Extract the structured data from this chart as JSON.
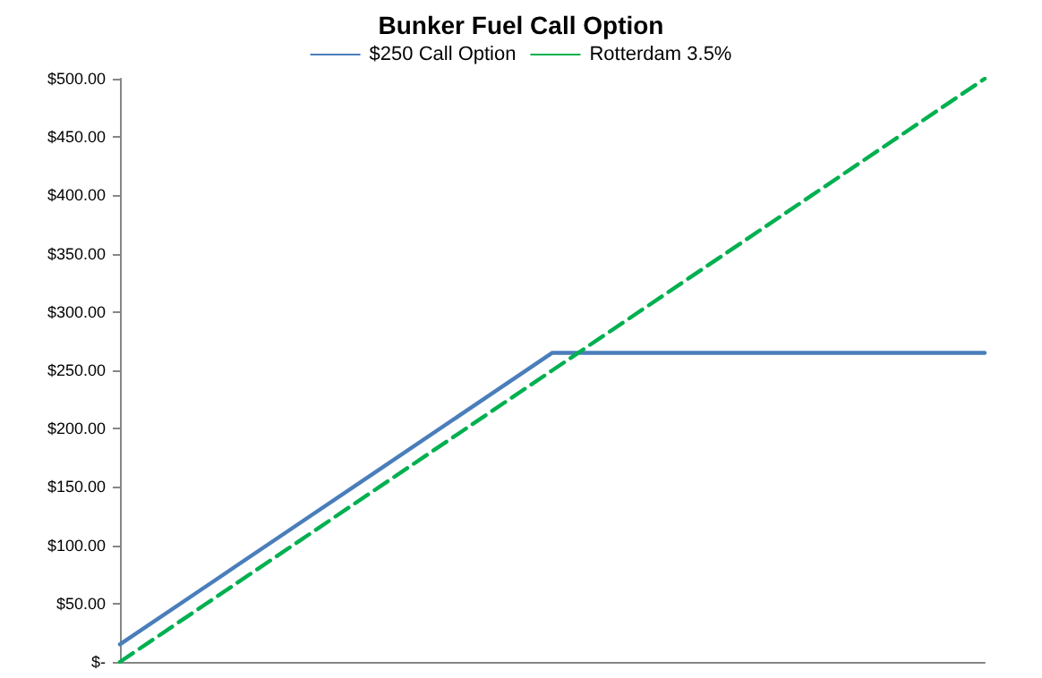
{
  "chart_data": {
    "type": "line",
    "title": "Bunker Fuel Call Option",
    "categories": [
      null,
      null,
      null,
      null,
      null,
      null,
      null,
      null,
      null,
      null,
      null
    ],
    "series": [
      {
        "name": "$250 Call Option",
        "color": "#4a7ebb",
        "values": [
          15,
          65,
          115,
          165,
          215,
          265,
          265,
          265,
          265,
          265,
          265
        ],
        "line_style": "solid"
      },
      {
        "name": "Rotterdam 3.5%",
        "color": "#00b050",
        "values": [
          0,
          50,
          100,
          150,
          200,
          250,
          300,
          350,
          400,
          450,
          500
        ],
        "line_style": "dashed"
      }
    ],
    "ylim": [
      0,
      500
    ],
    "yticks": [
      {
        "value": 0,
        "label": "$-"
      },
      {
        "value": 50,
        "label": "$50.00"
      },
      {
        "value": 100,
        "label": "$100.00"
      },
      {
        "value": 150,
        "label": "$150.00"
      },
      {
        "value": 200,
        "label": "$200.00"
      },
      {
        "value": 250,
        "label": "$250.00"
      },
      {
        "value": 300,
        "label": "$300.00"
      },
      {
        "value": 350,
        "label": "$350.00"
      },
      {
        "value": 400,
        "label": "$400.00"
      },
      {
        "value": 450,
        "label": "$450.00"
      },
      {
        "value": 500,
        "label": "$500.00"
      }
    ],
    "grid": false,
    "legend": "top",
    "marker": "none"
  }
}
